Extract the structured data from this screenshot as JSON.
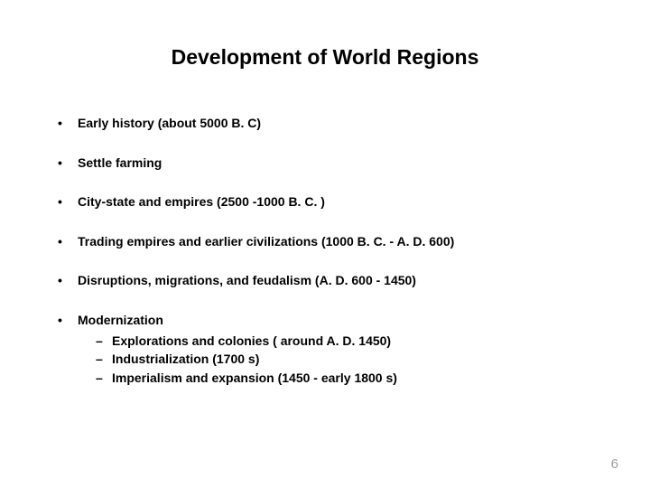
{
  "slide": {
    "title": "Development of World Regions",
    "bullets": [
      {
        "text": "Early history (about 5000 B. C)"
      },
      {
        "text": "Settle farming"
      },
      {
        "text": "City-state and empires (2500 -1000 B. C. )"
      },
      {
        "text": "Trading empires and earlier civilizations (1000 B. C. - A. D. 600)"
      },
      {
        "text": "Disruptions, migrations, and feudalism (A. D. 600 - 1450)"
      },
      {
        "text": "Modernization",
        "sub": [
          "Explorations and colonies ( around A. D. 1450)",
          "Industrialization (1700 s)",
          "Imperialism and expansion (1450 - early 1800 s)"
        ]
      }
    ],
    "page_number": "6"
  },
  "style": {
    "background_color": "#ffffff",
    "text_color": "#000000",
    "page_number_color": "#a0a0a0",
    "title_fontsize": 23,
    "body_fontsize": 14,
    "font_family": "Arial"
  }
}
